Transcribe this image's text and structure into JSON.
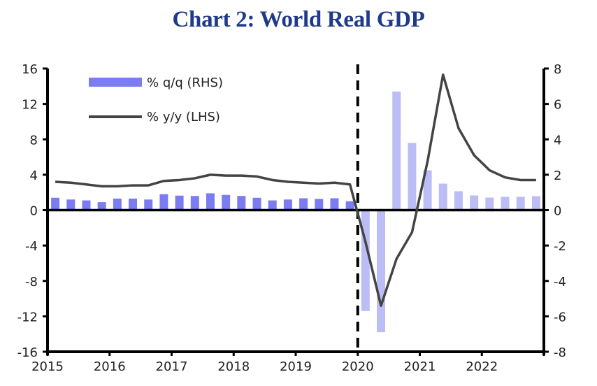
{
  "chart_data": {
    "type": "bar+line",
    "title": "Chart 2: World Real GDP",
    "xlabel": "",
    "ylabel_left": "",
    "ylabel_right": "",
    "x_tick_labels": [
      "2015",
      "2016",
      "2017",
      "2018",
      "2019",
      "2020",
      "2021",
      "2022"
    ],
    "x_range": [
      "2015",
      "2023"
    ],
    "ylim_left": [
      -16,
      16
    ],
    "yticks_left": [
      16,
      12,
      8,
      4,
      0,
      -4,
      -8,
      -12,
      -16
    ],
    "ylim_right": [
      -8,
      8
    ],
    "yticks_right": [
      8,
      6,
      4,
      2,
      0,
      -2,
      -4,
      -6,
      -8
    ],
    "grid": false,
    "legend_position": "top-left",
    "annotations": [
      {
        "type": "vertical-dashed-line",
        "x": "2020"
      }
    ],
    "categories": [
      "2015Q1",
      "2015Q2",
      "2015Q3",
      "2015Q4",
      "2016Q1",
      "2016Q2",
      "2016Q3",
      "2016Q4",
      "2017Q1",
      "2017Q2",
      "2017Q3",
      "2017Q4",
      "2018Q1",
      "2018Q2",
      "2018Q3",
      "2018Q4",
      "2019Q1",
      "2019Q2",
      "2019Q3",
      "2019Q4",
      "2020Q1",
      "2020Q2",
      "2020Q3",
      "2020Q4",
      "2021Q1",
      "2021Q2",
      "2021Q3",
      "2021Q4",
      "2022Q1",
      "2022Q2",
      "2022Q3",
      "2022Q4"
    ],
    "series": [
      {
        "name": "% q/q (RHS)",
        "type": "bar",
        "axis": "right",
        "color": "#7b7bf2",
        "forecast_color": "#bdbdf6",
        "forecast_from": "2020Q1",
        "values": [
          0.7,
          0.6,
          0.55,
          0.45,
          0.65,
          0.65,
          0.6,
          0.9,
          0.82,
          0.8,
          0.95,
          0.86,
          0.8,
          0.7,
          0.55,
          0.6,
          0.67,
          0.63,
          0.67,
          0.5,
          -5.7,
          -6.9,
          6.7,
          3.8,
          2.25,
          1.5,
          1.07,
          0.83,
          0.71,
          0.75,
          0.75,
          0.79
        ]
      },
      {
        "name": "% y/y (LHS)",
        "type": "line",
        "axis": "left",
        "color": "#444444",
        "values": [
          3.2,
          3.1,
          2.9,
          2.7,
          2.7,
          2.8,
          2.8,
          3.3,
          3.4,
          3.6,
          4.0,
          3.9,
          3.9,
          3.8,
          3.4,
          3.2,
          3.1,
          3.0,
          3.1,
          2.9,
          -3.6,
          -10.8,
          -5.5,
          -2.5,
          5.5,
          15.3,
          9.25,
          6.2,
          4.5,
          3.7,
          3.4,
          3.4
        ]
      }
    ]
  }
}
